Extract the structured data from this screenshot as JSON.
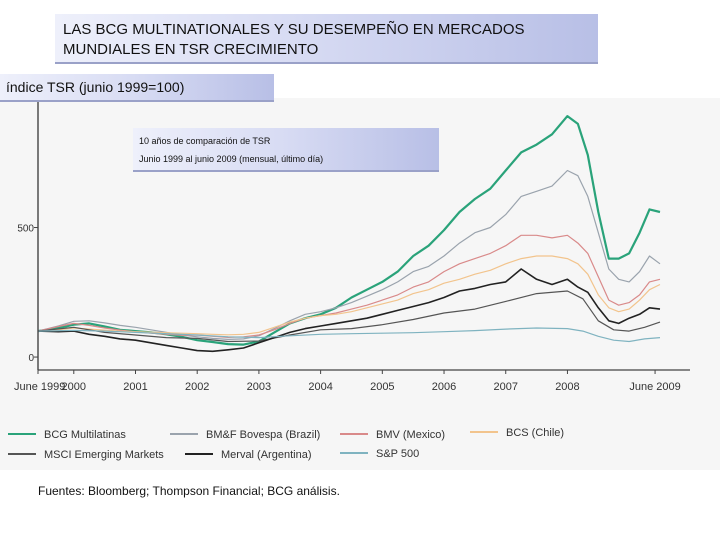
{
  "header": {
    "title_line1": "LAS BCG MULTINATIONALES Y SU DESEMPEÑO EN MERCADOS",
    "title_line2": "MUNDIALES EN TSR CRECIMIENTO",
    "index_label": "índice TSR (junio 1999=100)",
    "subtitle_line1": "10 años de comparación de TSR",
    "subtitle_line2": "Junio 1999 al junio 2009 (mensual, último día)"
  },
  "footer": {
    "sources": "Fuentes: Bloomberg; Thompson Financial; BCG análisis."
  },
  "chart_data": {
    "type": "line",
    "title": "LAS BCG MULTINATIONALES Y SU DESEMPEÑO EN MERCADOS MUNDIALES EN TSR CRECIMIENTO",
    "ylabel": "índice TSR (junio 1999=100)",
    "xlabel": "",
    "ylim": [
      -50,
      1000
    ],
    "xlim": [
      1999.42,
      2009.5
    ],
    "y_ticks": [
      0,
      500
    ],
    "x_ticks": [
      {
        "label": "June 1999",
        "value": 1999.42
      },
      {
        "label": "2000",
        "value": 2000
      },
      {
        "label": "2001",
        "value": 2001
      },
      {
        "label": "2002",
        "value": 2002
      },
      {
        "label": "2003",
        "value": 2003
      },
      {
        "label": "2004",
        "value": 2004
      },
      {
        "label": "2005",
        "value": 2005
      },
      {
        "label": "2006",
        "value": 2006
      },
      {
        "label": "2007",
        "value": 2007
      },
      {
        "label": "2008",
        "value": 2008
      },
      {
        "label": "June 2009",
        "value": 2009.42
      }
    ],
    "legend_position": "bottom",
    "series": [
      {
        "name": "BCG Multilatinas",
        "color": "#2aa37a",
        "width": 2.2,
        "x": [
          1999.42,
          1999.75,
          2000,
          2000.25,
          2000.5,
          2000.75,
          2001,
          2001.25,
          2001.5,
          2001.75,
          2002,
          2002.25,
          2002.5,
          2002.75,
          2003,
          2003.25,
          2003.5,
          2003.75,
          2004,
          2004.25,
          2004.5,
          2004.75,
          2005,
          2005.25,
          2005.5,
          2005.75,
          2006,
          2006.25,
          2006.5,
          2006.75,
          2007,
          2007.25,
          2007.5,
          2007.75,
          2008,
          2008.17,
          2008.33,
          2008.5,
          2008.67,
          2008.83,
          2009,
          2009.17,
          2009.33,
          2009.5
        ],
        "y": [
          100,
          112,
          125,
          130,
          118,
          105,
          100,
          95,
          88,
          78,
          65,
          58,
          50,
          48,
          60,
          95,
          130,
          150,
          165,
          190,
          230,
          260,
          290,
          330,
          390,
          430,
          490,
          560,
          610,
          650,
          720,
          790,
          820,
          860,
          930,
          900,
          780,
          560,
          380,
          380,
          400,
          480,
          570,
          560
        ]
      },
      {
        "name": "BM&F Bovespa (Brazil)",
        "color": "#9aa3ad",
        "width": 1.2,
        "x": [
          1999.42,
          1999.75,
          2000,
          2000.25,
          2000.5,
          2000.75,
          2001,
          2001.25,
          2001.5,
          2001.75,
          2002,
          2002.25,
          2002.5,
          2002.75,
          2003,
          2003.25,
          2003.5,
          2003.75,
          2004,
          2004.25,
          2004.5,
          2004.75,
          2005,
          2005.25,
          2005.5,
          2005.75,
          2006,
          2006.25,
          2006.5,
          2006.75,
          2007,
          2007.25,
          2007.5,
          2007.75,
          2008,
          2008.17,
          2008.33,
          2008.5,
          2008.67,
          2008.83,
          2009,
          2009.17,
          2009.33,
          2009.5
        ],
        "y": [
          100,
          120,
          138,
          140,
          132,
          122,
          115,
          105,
          95,
          85,
          78,
          72,
          68,
          70,
          82,
          110,
          140,
          165,
          175,
          190,
          210,
          235,
          260,
          290,
          330,
          350,
          390,
          440,
          480,
          500,
          550,
          620,
          640,
          660,
          720,
          700,
          620,
          480,
          340,
          300,
          290,
          330,
          390,
          360
        ]
      },
      {
        "name": "BMV (Mexico)",
        "color": "#d98a8a",
        "width": 1.2,
        "x": [
          1999.42,
          1999.75,
          2000,
          2000.25,
          2000.5,
          2000.75,
          2001,
          2001.25,
          2001.5,
          2001.75,
          2002,
          2002.25,
          2002.5,
          2002.75,
          2003,
          2003.25,
          2003.5,
          2003.75,
          2004,
          2004.25,
          2004.5,
          2004.75,
          2005,
          2005.25,
          2005.5,
          2005.75,
          2006,
          2006.25,
          2006.5,
          2006.75,
          2007,
          2007.25,
          2007.5,
          2007.75,
          2008,
          2008.17,
          2008.33,
          2008.5,
          2008.67,
          2008.83,
          2009,
          2009.17,
          2009.33,
          2009.5
        ],
        "y": [
          100,
          118,
          130,
          122,
          112,
          104,
          98,
          92,
          88,
          84,
          85,
          80,
          76,
          78,
          85,
          105,
          130,
          150,
          160,
          170,
          185,
          200,
          220,
          240,
          270,
          290,
          330,
          360,
          380,
          400,
          430,
          470,
          470,
          460,
          470,
          440,
          400,
          310,
          220,
          200,
          210,
          240,
          290,
          300
        ]
      },
      {
        "name": "BCS (Chile)",
        "color": "#f2c48d",
        "width": 1.2,
        "x": [
          1999.42,
          1999.75,
          2000,
          2000.25,
          2000.5,
          2000.75,
          2001,
          2001.25,
          2001.5,
          2001.75,
          2002,
          2002.25,
          2002.5,
          2002.75,
          2003,
          2003.25,
          2003.5,
          2003.75,
          2004,
          2004.25,
          2004.5,
          2004.75,
          2005,
          2005.25,
          2005.5,
          2005.75,
          2006,
          2006.25,
          2006.5,
          2006.75,
          2007,
          2007.25,
          2007.5,
          2007.75,
          2008,
          2008.17,
          2008.33,
          2008.5,
          2008.67,
          2008.83,
          2009,
          2009.17,
          2009.33,
          2009.5
        ],
        "y": [
          100,
          105,
          112,
          108,
          104,
          100,
          98,
          96,
          94,
          92,
          90,
          88,
          86,
          88,
          95,
          115,
          135,
          150,
          160,
          165,
          175,
          190,
          205,
          220,
          245,
          260,
          285,
          300,
          320,
          335,
          360,
          380,
          390,
          390,
          380,
          360,
          320,
          240,
          190,
          175,
          185,
          220,
          260,
          280
        ]
      },
      {
        "name": "MSCI Emerging Markets",
        "color": "#555555",
        "width": 1.2,
        "x": [
          1999.42,
          2000,
          2000.5,
          2001,
          2001.5,
          2002,
          2002.5,
          2003,
          2003.5,
          2004,
          2004.5,
          2005,
          2005.5,
          2006,
          2006.5,
          2007,
          2007.5,
          2008,
          2008.25,
          2008.5,
          2008.75,
          2009,
          2009.25,
          2009.5
        ],
        "y": [
          100,
          115,
          95,
          85,
          75,
          72,
          60,
          62,
          85,
          105,
          110,
          125,
          145,
          170,
          185,
          215,
          245,
          255,
          225,
          140,
          105,
          100,
          115,
          135
        ]
      },
      {
        "name": "Merval (Argentina)",
        "color": "#222222",
        "width": 1.6,
        "x": [
          1999.42,
          1999.75,
          2000,
          2000.25,
          2000.5,
          2000.75,
          2001,
          2001.25,
          2001.5,
          2001.75,
          2002,
          2002.25,
          2002.5,
          2002.75,
          2003,
          2003.25,
          2003.5,
          2003.75,
          2004,
          2004.25,
          2004.5,
          2004.75,
          2005,
          2005.25,
          2005.5,
          2005.75,
          2006,
          2006.25,
          2006.5,
          2006.75,
          2007,
          2007.25,
          2007.5,
          2007.75,
          2008,
          2008.17,
          2008.33,
          2008.5,
          2008.67,
          2008.83,
          2009,
          2009.17,
          2009.33,
          2009.5
        ],
        "y": [
          100,
          98,
          100,
          88,
          80,
          70,
          65,
          55,
          45,
          35,
          25,
          22,
          28,
          35,
          55,
          75,
          95,
          110,
          120,
          130,
          140,
          150,
          165,
          180,
          195,
          210,
          230,
          255,
          265,
          280,
          290,
          340,
          300,
          280,
          300,
          270,
          250,
          190,
          140,
          130,
          150,
          165,
          190,
          185
        ]
      },
      {
        "name": "S&P 500",
        "color": "#7fb3c0",
        "width": 1.2,
        "x": [
          1999.42,
          2000,
          2000.5,
          2001,
          2001.5,
          2002,
          2002.5,
          2003,
          2003.5,
          2004,
          2004.5,
          2005,
          2005.5,
          2006,
          2006.5,
          2007,
          2007.5,
          2008,
          2008.25,
          2008.5,
          2008.75,
          2009,
          2009.25,
          2009.5
        ],
        "y": [
          100,
          103,
          100,
          95,
          90,
          85,
          78,
          75,
          82,
          88,
          90,
          92,
          94,
          98,
          102,
          108,
          112,
          110,
          100,
          80,
          65,
          60,
          70,
          75
        ]
      }
    ]
  }
}
